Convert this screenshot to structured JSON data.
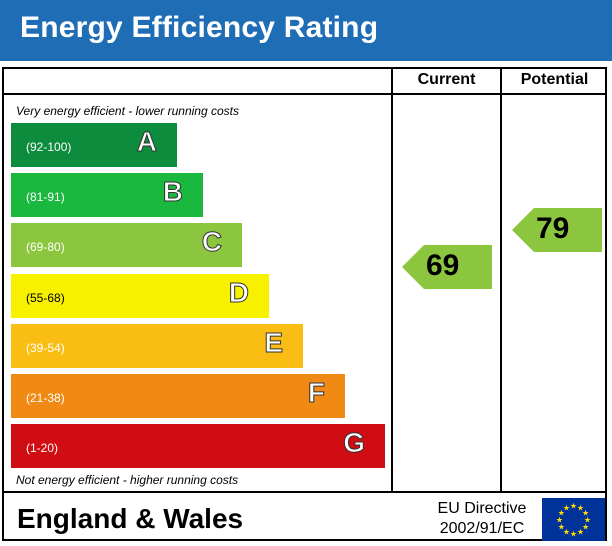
{
  "header": {
    "title": "Energy Efficiency Rating",
    "color": "#1f6db5"
  },
  "columns": {
    "current": "Current",
    "potential": "Potential"
  },
  "notes": {
    "top": "Very energy efficient - lower running costs",
    "bottom": "Not energy efficient - higher running costs"
  },
  "footer": {
    "region": "England & Wales",
    "directive_line1": "EU Directive",
    "directive_line2": "2002/91/EC",
    "flag_icon": "eu-flag-icon"
  },
  "chart_data": {
    "type": "bar",
    "title": "Energy Efficiency Rating",
    "bands": [
      {
        "range": "(92-100)",
        "letter": "A",
        "color": "#008054",
        "fill": "#0c8c3c"
      },
      {
        "range": "(81-91)",
        "letter": "B",
        "color": "#19b459",
        "fill": "#1ab83f"
      },
      {
        "range": "(69-80)",
        "letter": "C",
        "color": "#8dce46",
        "fill": "#8cc63f"
      },
      {
        "range": "(55-68)",
        "letter": "D",
        "color": "#ffd500",
        "fill": "#f7f100"
      },
      {
        "range": "(39-54)",
        "letter": "E",
        "color": "#fcaa65",
        "fill": "#f9bd14"
      },
      {
        "range": "(21-38)",
        "letter": "F",
        "color": "#ef8023",
        "fill": "#f18a14"
      },
      {
        "range": "(1-20)",
        "letter": "G",
        "color": "#e9153b",
        "fill": "#d10d14"
      }
    ],
    "current": {
      "value": 69,
      "band": "C",
      "color": "#8cc63f"
    },
    "potential": {
      "value": 79,
      "band": "C",
      "color": "#8cc63f"
    }
  }
}
